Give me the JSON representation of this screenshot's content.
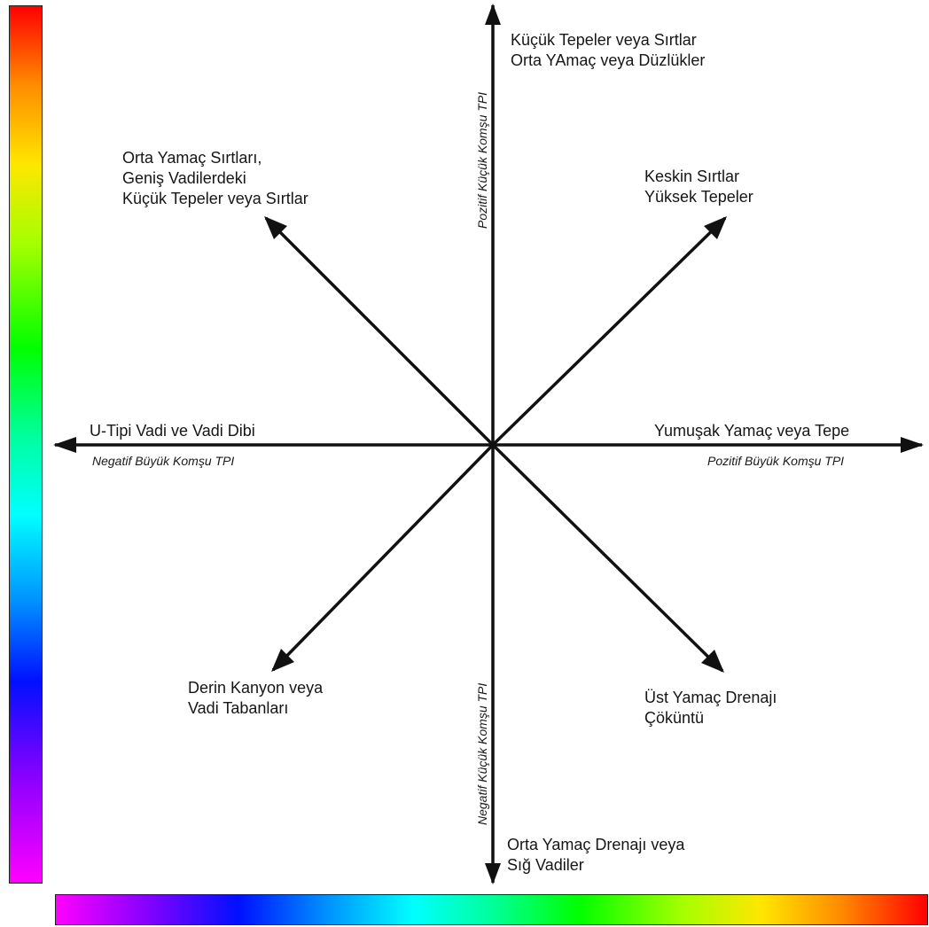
{
  "colors": {
    "axis": "#111111",
    "text": "#161616",
    "scale": [
      "#ff0000",
      "#ff8c00",
      "#ffe600",
      "#a6ff00",
      "#00ff00",
      "#00ff9c",
      "#00ffff",
      "#0090ff",
      "#0010ff",
      "#8a00ff",
      "#ff00ff"
    ]
  },
  "axes": {
    "positive_small": "Pozitif Küçük Komşu TPI",
    "negative_small": "Negatif Küçük Komşu TPI",
    "negative_large": "Negatif Büyük Komşu TPI",
    "positive_large": "Pozitif Büyük Komşu TPI"
  },
  "labels": {
    "top": [
      "Küçük Tepeler veya Sırtlar",
      "Orta YAmaç veya Düzlükler"
    ],
    "top_left": [
      "Orta Yamaç Sırtları,",
      "Geniş Vadilerdeki",
      "Küçük Tepeler veya Sırtlar"
    ],
    "top_right": [
      "Keskin Sırtlar",
      "Yüksek Tepeler"
    ],
    "left": [
      "U-Tipi Vadi ve Vadi Dibi"
    ],
    "right": [
      "Yumuşak Yamaç veya Tepe"
    ],
    "bottom_left": [
      "Derin Kanyon veya",
      "Vadi Tabanları"
    ],
    "bottom_right": [
      "Üst Yamaç Drenajı",
      "Çöküntü"
    ],
    "bottom": [
      "Orta Yamaç Drenajı veya",
      "Sığ Vadiler"
    ]
  }
}
